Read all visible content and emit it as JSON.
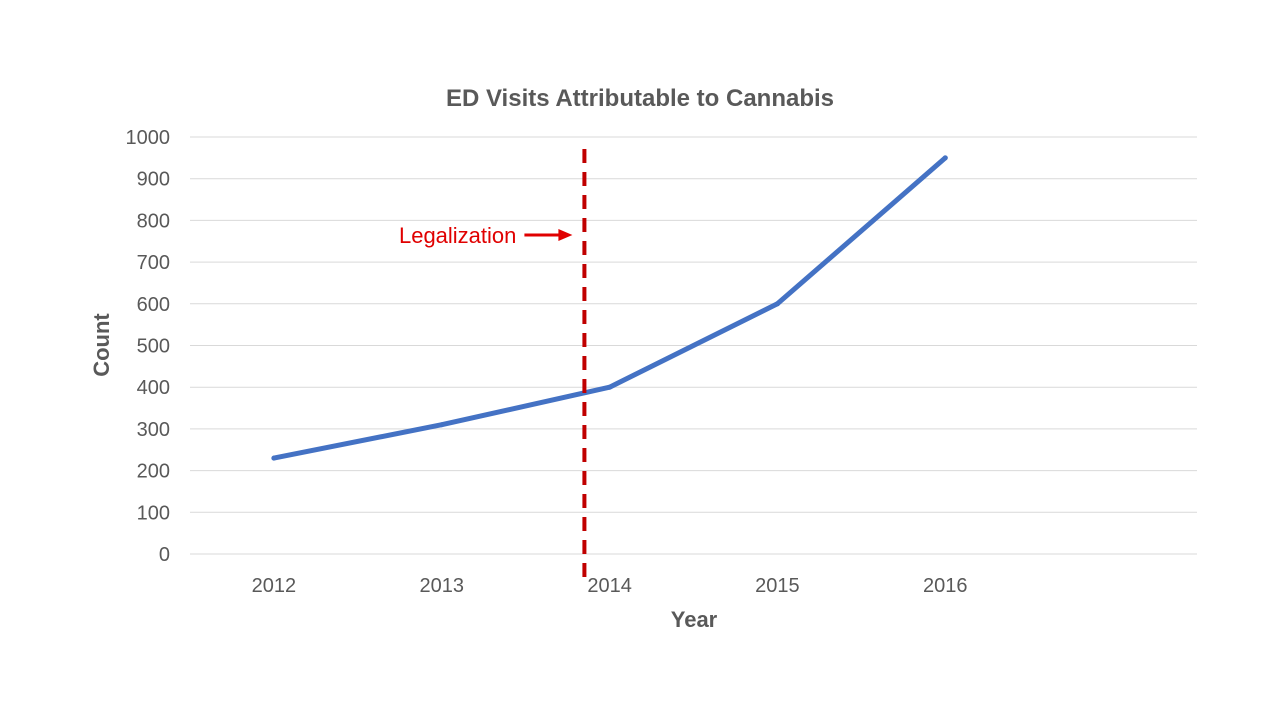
{
  "chart_data": {
    "type": "line",
    "title": "ED Visits Attributable to Cannabis",
    "xlabel": "Year",
    "ylabel": "Count",
    "categories": [
      "2012",
      "2013",
      "2014",
      "2015",
      "2016"
    ],
    "x_slots": 6,
    "ylim": [
      0,
      1000
    ],
    "yticks": [
      0,
      100,
      200,
      300,
      400,
      500,
      600,
      700,
      800,
      900,
      1000
    ],
    "grid": true,
    "series": [
      {
        "name": "ED Visits",
        "color": "#4472c4",
        "values": [
          230,
          310,
          400,
          600,
          950
        ]
      }
    ],
    "annotations": [
      {
        "type": "vertical-dashed-line",
        "x_position": 1.85,
        "label": "Legalization",
        "color": "#c00000",
        "label_color": "#e00000"
      }
    ]
  }
}
